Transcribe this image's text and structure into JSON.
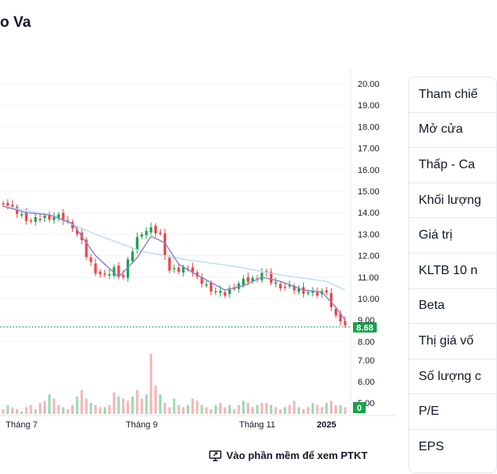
{
  "header": {
    "title": "o Va"
  },
  "footer": {
    "ptkt_link": "Vào phần mềm để xem PTKT"
  },
  "side_panel": {
    "rows": [
      "Tham chiế",
      "Mở cửa",
      "Thấp - Ca",
      "Khối lượng",
      "Giá trị",
      "KLTB 10 n",
      "Beta",
      "Thị giá vố",
      "Số lượng c",
      "P/E",
      "EPS"
    ]
  },
  "colors": {
    "up": "#16a34a",
    "down": "#ef4444",
    "ma_short": "#8b7fc7",
    "ma_long": "#b9dcf5",
    "current_price": "#16a34a"
  },
  "chart_data": {
    "type": "candlestick",
    "y_ticks": [
      "20.00",
      "19.00",
      "18.00",
      "17.00",
      "16.00",
      "15.00",
      "14.00",
      "13.00",
      "12.00",
      "11.00",
      "10.00",
      "9.00",
      "8.00"
    ],
    "y_range": [
      8,
      20
    ],
    "x_ticks": [
      "Tháng 7",
      "Tháng 9",
      "Tháng 11",
      "2025"
    ],
    "current_price_label": "8.68",
    "current_price": 8.68,
    "volume_ticks": [
      "7.00",
      "6.00",
      "5.00"
    ],
    "volume_range": [
      4.5,
      7.5
    ],
    "volume_current_label": "0",
    "close_path": [
      [
        0,
        14.5
      ],
      [
        3,
        14.0
      ],
      [
        6,
        13.6
      ],
      [
        9,
        13.8
      ],
      [
        12,
        13.8
      ],
      [
        15,
        13.4
      ],
      [
        17,
        12.6
      ],
      [
        18,
        12.0
      ],
      [
        20,
        11.3
      ],
      [
        22,
        11.0
      ],
      [
        24,
        11.4
      ],
      [
        26,
        11.0
      ],
      [
        27,
        11.7
      ],
      [
        29,
        12.8
      ],
      [
        30,
        13.1
      ],
      [
        32,
        13.2
      ],
      [
        34,
        13.0
      ],
      [
        35,
        12.1
      ],
      [
        36,
        11.3
      ],
      [
        38,
        11.3
      ],
      [
        40,
        11.5
      ],
      [
        42,
        10.9
      ],
      [
        44,
        10.6
      ],
      [
        46,
        10.3
      ],
      [
        48,
        10.2
      ],
      [
        50,
        10.6
      ],
      [
        52,
        10.8
      ],
      [
        54,
        10.9
      ],
      [
        56,
        11.2
      ],
      [
        57,
        11.1
      ],
      [
        58,
        10.8
      ],
      [
        60,
        10.6
      ],
      [
        62,
        10.5
      ],
      [
        64,
        10.4
      ],
      [
        66,
        10.3
      ],
      [
        68,
        10.2
      ],
      [
        70,
        10.4
      ],
      [
        71,
        9.6
      ],
      [
        72,
        9.1
      ],
      [
        73,
        9.0
      ],
      [
        74,
        8.7
      ]
    ],
    "ma_short": [
      [
        0,
        14.3
      ],
      [
        5,
        14.0
      ],
      [
        10,
        13.9
      ],
      [
        15,
        13.5
      ],
      [
        20,
        12.0
      ],
      [
        25,
        11.0
      ],
      [
        29,
        11.9
      ],
      [
        32,
        12.9
      ],
      [
        35,
        12.6
      ],
      [
        38,
        11.6
      ],
      [
        42,
        11.1
      ],
      [
        48,
        10.4
      ],
      [
        52,
        10.6
      ],
      [
        56,
        11.0
      ],
      [
        60,
        10.8
      ],
      [
        65,
        10.4
      ],
      [
        69,
        10.3
      ],
      [
        72,
        9.6
      ],
      [
        74,
        9.0
      ]
    ],
    "ma_long": [
      [
        0,
        14.3
      ],
      [
        10,
        13.9
      ],
      [
        20,
        13.0
      ],
      [
        30,
        12.2
      ],
      [
        40,
        11.8
      ],
      [
        50,
        11.5
      ],
      [
        60,
        11.1
      ],
      [
        70,
        10.8
      ],
      [
        74,
        10.4
      ]
    ],
    "volumes": [
      4.7,
      4.9,
      4.8,
      4.7,
      4.6,
      4.8,
      4.9,
      4.7,
      5.0,
      5.1,
      5.4,
      5.2,
      4.9,
      4.8,
      4.7,
      4.9,
      5.3,
      5.6,
      5.2,
      5.0,
      4.9,
      4.8,
      4.8,
      4.9,
      5.5,
      5.3,
      5.2,
      5.1,
      5.3,
      5.6,
      5.2,
      5.4,
      7.3,
      5.8,
      5.4,
      5.0,
      4.8,
      5.2,
      4.9,
      4.8,
      4.9,
      5.2,
      5.1,
      4.9,
      4.8,
      4.7,
      4.9,
      5.0,
      4.8,
      4.9,
      4.7,
      4.9,
      5.1,
      5.0,
      4.8,
      4.9,
      5.0,
      5.0,
      4.9,
      4.8,
      4.7,
      4.8,
      4.9,
      5.1,
      4.8,
      4.7,
      4.8,
      5.0,
      4.9,
      4.8,
      5.0,
      5.1,
      4.9,
      4.9,
      4.8
    ]
  }
}
